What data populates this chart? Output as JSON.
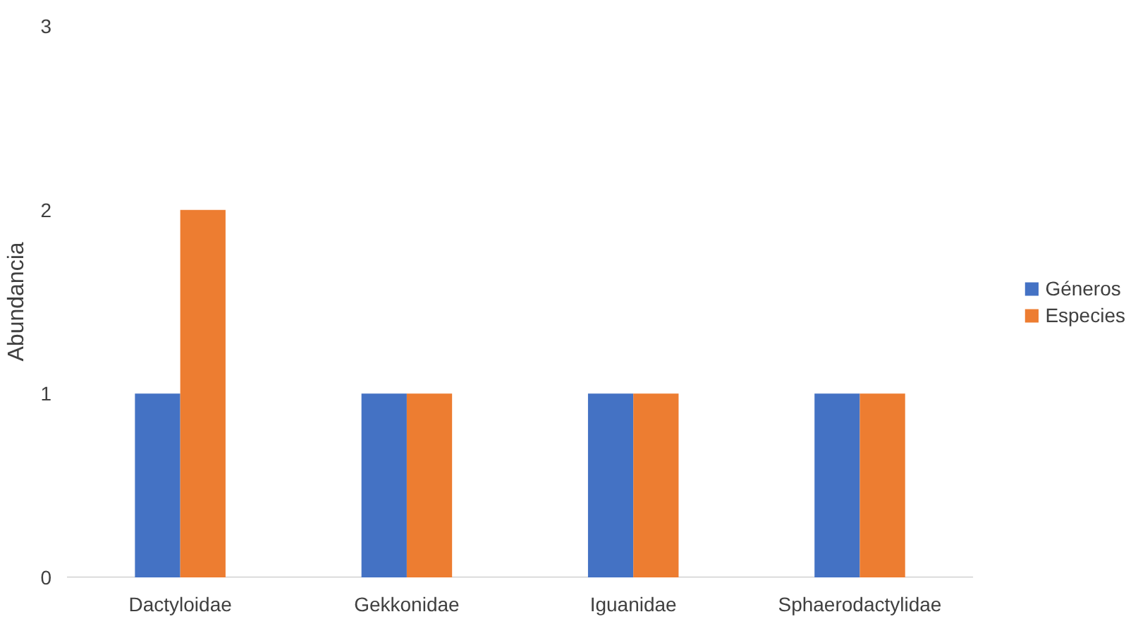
{
  "chart_data": {
    "type": "bar",
    "ylabel": "Abundancia",
    "categories": [
      "Dactyloidae",
      "Gekkonidae",
      "Iguanidae",
      "Sphaerodactylidae"
    ],
    "series": [
      {
        "name": "Géneros",
        "color": "#4472c4",
        "values": [
          1,
          1,
          1,
          1
        ]
      },
      {
        "name": "Especies",
        "color": "#ed7d31",
        "values": [
          2,
          1,
          1,
          1
        ]
      }
    ],
    "ylim": [
      0,
      3
    ],
    "yticks": [
      0,
      1,
      2,
      3
    ],
    "grid": false,
    "legend": "right"
  }
}
